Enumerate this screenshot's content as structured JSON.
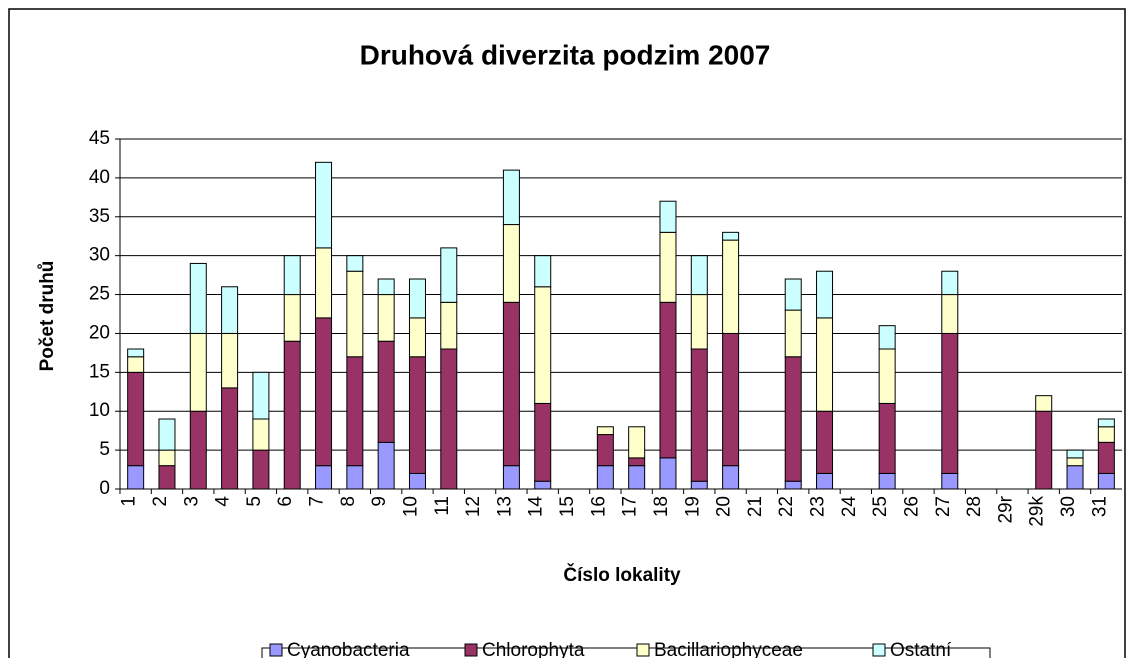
{
  "chart_data": {
    "type": "stacked_bar",
    "title": "Druhová diverzita podzim 2007",
    "x_label": "Číslo lokality",
    "y_label": "Počet druhů",
    "categories": [
      "1",
      "2",
      "3",
      "4",
      "5",
      "6",
      "7",
      "8",
      "9",
      "10",
      "11",
      "12",
      "13",
      "14",
      "15",
      "16",
      "17",
      "18",
      "19",
      "20",
      "21",
      "22",
      "23",
      "24",
      "25",
      "26",
      "27",
      "28",
      "29r",
      "29k",
      "30",
      "31"
    ],
    "series": [
      {
        "name": "Cyanobacteria",
        "color": "#9999ff",
        "values": [
          3,
          0,
          0,
          0,
          0,
          0,
          3,
          3,
          6,
          2,
          0,
          0,
          3,
          1,
          0,
          3,
          3,
          4,
          1,
          3,
          0,
          1,
          2,
          0,
          2,
          0,
          2,
          0,
          0,
          0,
          3,
          2
        ]
      },
      {
        "name": "Chlorophyta",
        "color": "#993366",
        "values": [
          12,
          3,
          10,
          13,
          5,
          19,
          19,
          14,
          13,
          15,
          18,
          0,
          21,
          10,
          0,
          4,
          1,
          20,
          17,
          17,
          0,
          16,
          8,
          0,
          9,
          0,
          18,
          0,
          0,
          10,
          0,
          4
        ]
      },
      {
        "name": "Bacillariophyceae",
        "color": "#ffffcc",
        "values": [
          2,
          2,
          10,
          7,
          4,
          6,
          9,
          11,
          6,
          5,
          6,
          0,
          10,
          15,
          0,
          1,
          4,
          9,
          7,
          12,
          0,
          6,
          12,
          0,
          7,
          0,
          5,
          0,
          0,
          2,
          1,
          2
        ]
      },
      {
        "name": "Ostatní",
        "color": "#ccffff",
        "values": [
          1,
          4,
          9,
          6,
          6,
          5,
          11,
          2,
          2,
          5,
          7,
          0,
          7,
          4,
          0,
          0,
          0,
          4,
          5,
          1,
          0,
          4,
          6,
          0,
          3,
          0,
          3,
          0,
          0,
          0,
          1,
          1
        ]
      }
    ],
    "ylim": [
      0,
      45
    ],
    "yticks": [
      0,
      5,
      10,
      15,
      20,
      25,
      30,
      35,
      40,
      45
    ],
    "grid": true,
    "legend": "bottom"
  }
}
